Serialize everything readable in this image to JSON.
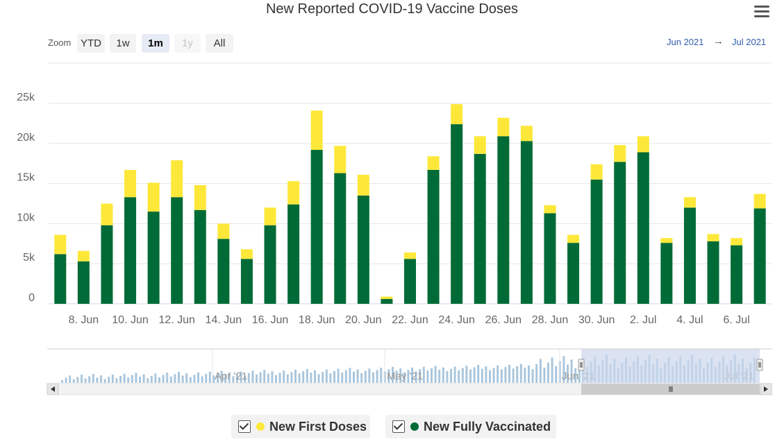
{
  "title": "New Reported COVID-19 Vaccine Doses",
  "zoom": {
    "label": "Zoom",
    "buttons": [
      {
        "label": "YTD",
        "state": "normal"
      },
      {
        "label": "1w",
        "state": "normal"
      },
      {
        "label": "1m",
        "state": "active"
      },
      {
        "label": "1y",
        "state": "disabled"
      },
      {
        "label": "All",
        "state": "normal"
      }
    ]
  },
  "range": {
    "from": "Jun 2021",
    "arrow": "→",
    "to": "Jul 2021"
  },
  "menu_icon": "hamburger-menu-icon",
  "colors": {
    "first_doses": "#fde83a",
    "fully_vaccinated": "#006b36",
    "navigator": "#a9c6dd",
    "navigator_mask": "#ccd7ec"
  },
  "chart_data": {
    "type": "bar",
    "stacked": true,
    "title": "New Reported COVID-19 Vaccine Doses",
    "ylim": [
      0,
      25000
    ],
    "y_ticks": [
      0,
      5000,
      10000,
      15000,
      20000,
      25000
    ],
    "y_tick_labels": [
      "0",
      "5k",
      "10k",
      "15k",
      "20k",
      "25k"
    ],
    "x_tick_labels": [
      "8. Jun",
      "10. Jun",
      "12. Jun",
      "14. Jun",
      "16. Jun",
      "18. Jun",
      "20. Jun",
      "22. Jun",
      "24. Jun",
      "26. Jun",
      "28. Jun",
      "30. Jun",
      "2. Jul",
      "4. Jul",
      "6. Jul"
    ],
    "x_tick_positions": [
      1,
      3,
      5,
      7,
      9,
      11,
      13,
      15,
      17,
      19,
      21,
      23,
      25,
      27,
      29
    ],
    "grid": true,
    "legend_position": "bottom-center",
    "categories": [
      "2021-06-07",
      "2021-06-08",
      "2021-06-09",
      "2021-06-10",
      "2021-06-11",
      "2021-06-12",
      "2021-06-13",
      "2021-06-14",
      "2021-06-15",
      "2021-06-16",
      "2021-06-17",
      "2021-06-18",
      "2021-06-19",
      "2021-06-20",
      "2021-06-21",
      "2021-06-22",
      "2021-06-23",
      "2021-06-24",
      "2021-06-25",
      "2021-06-26",
      "2021-06-27",
      "2021-06-28",
      "2021-06-29",
      "2021-06-30",
      "2021-07-01",
      "2021-07-02",
      "2021-07-03",
      "2021-07-04",
      "2021-07-05",
      "2021-07-06",
      "2021-07-07"
    ],
    "series": [
      {
        "name": "New Fully Vaccinated",
        "color": "#006b36",
        "values": [
          6200,
          5300,
          9800,
          13300,
          11500,
          13300,
          11700,
          8100,
          5600,
          9800,
          12400,
          19200,
          16300,
          13500,
          600,
          5600,
          16700,
          22400,
          18700,
          20900,
          20300,
          11300,
          7600,
          15500,
          17700,
          18900,
          7600,
          12000,
          7800,
          7300,
          11900
        ]
      },
      {
        "name": "New First Doses",
        "color": "#fde83a",
        "values": [
          2400,
          1300,
          2700,
          3400,
          3600,
          4600,
          3100,
          1900,
          1200,
          2200,
          2900,
          4900,
          3400,
          2600,
          300,
          800,
          1700,
          2500,
          2200,
          2300,
          1900,
          1000,
          1000,
          1900,
          2100,
          2000,
          600,
          1300,
          900,
          900,
          1800
        ]
      }
    ]
  },
  "navigator": {
    "labels": [
      "Apr '21",
      "May '21",
      "Jun '21",
      "Jul '21"
    ]
  },
  "legend": [
    {
      "label": "New First Doses",
      "color": "#fde83a"
    },
    {
      "label": "New Fully Vaccinated",
      "color": "#006b36"
    }
  ]
}
